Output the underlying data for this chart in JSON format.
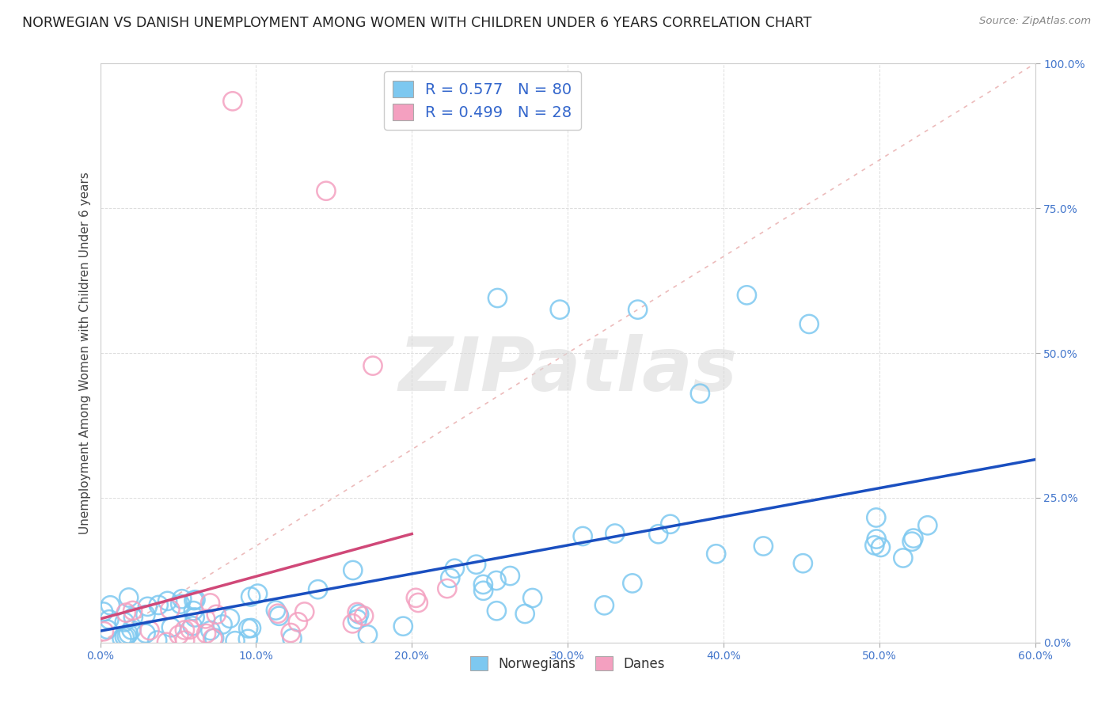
{
  "title": "NORWEGIAN VS DANISH UNEMPLOYMENT AMONG WOMEN WITH CHILDREN UNDER 6 YEARS CORRELATION CHART",
  "source": "Source: ZipAtlas.com",
  "ylabel": "Unemployment Among Women with Children Under 6 years",
  "xlim": [
    0.0,
    0.6
  ],
  "ylim": [
    0.0,
    1.0
  ],
  "norwegian_R": 0.577,
  "norwegian_N": 80,
  "danish_R": 0.499,
  "danish_N": 28,
  "norwegian_color": "#7DC8F0",
  "danish_color": "#F4A0C0",
  "norwegian_line_color": "#1A4FC0",
  "danish_line_color": "#D04878",
  "ref_line_color": "#E8AAAA",
  "watermark": "ZIPatlas",
  "title_fontsize": 12.5,
  "axis_label_fontsize": 11,
  "tick_fontsize": 10,
  "legend_fontsize": 14
}
